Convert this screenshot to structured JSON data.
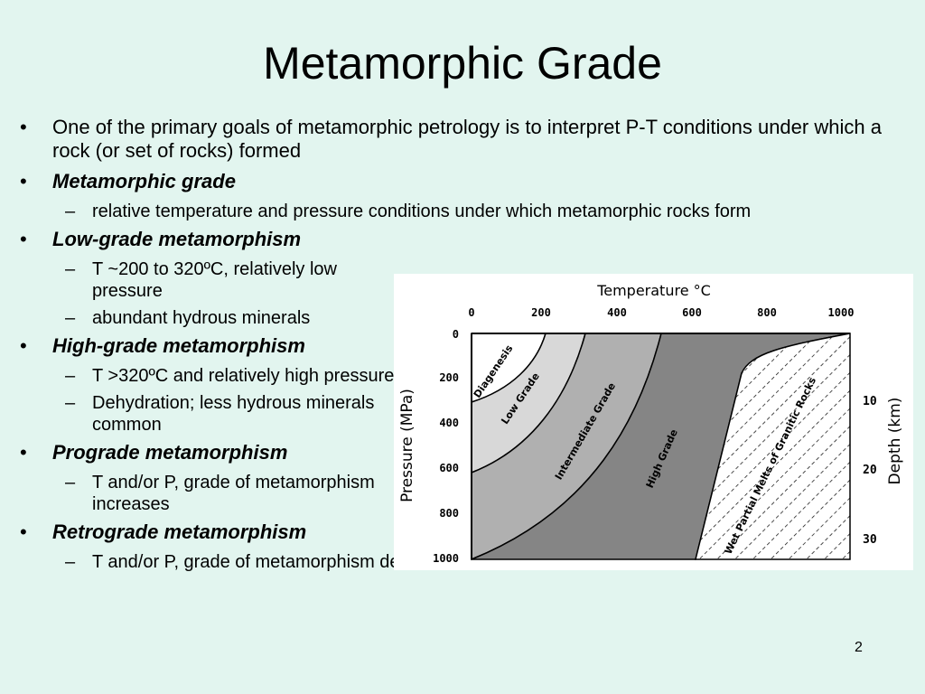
{
  "slide": {
    "title": "Metamorphic Grade",
    "page_number": "2",
    "bullets": [
      {
        "text": "One of the primary goals of metamorphic petrology is to interpret P-T conditions under which a rock (or set of rocks) formed"
      },
      {
        "text": "Metamorphic grade",
        "subs": [
          "relative temperature and pressure conditions under which metamorphic rocks form"
        ]
      },
      {
        "text": "Low-grade metamorphism",
        "subs": [
          "T ~200 to 320ºC, relatively low pressure",
          "abundant hydrous minerals"
        ]
      },
      {
        "text": "High-grade metamorphism",
        "subs": [
          "T >320ºC and relatively high pressure",
          "Dehydration; less hydrous minerals common"
        ]
      },
      {
        "text": "Prograde metamorphism",
        "subs": [
          "T and/or P, grade of metamorphism increases"
        ]
      },
      {
        "text": "Retrograde metamorphism",
        "subs": [
          "T and/or P, grade of metamorphism decreases"
        ]
      }
    ]
  },
  "figure": {
    "top_axis_label": "Temperature °C",
    "left_axis_label": "Pressure (MPa)",
    "right_axis_label": "Depth (km)",
    "temperature_ticks": [
      "0",
      "200",
      "400",
      "600",
      "800",
      "1000"
    ],
    "pressure_ticks": [
      "0",
      "200",
      "400",
      "600",
      "800",
      "1000"
    ],
    "depth_ticks": [
      "10",
      "20",
      "30"
    ],
    "zones": {
      "diagenesis": "Diagenesis",
      "low_grade": "Low Grade",
      "intermediate_grade": "Intermediate Grade",
      "high_grade": "High Grade",
      "wet_melts": "Wet Partial Melts of Granitic Rocks"
    },
    "colors": {
      "diagenesis": "#ffffff",
      "low_grade": "#d8d8d8",
      "intermediate_grade": "#b0b0b0",
      "high_grade": "#858585",
      "melt_hatch": "#000000"
    }
  }
}
